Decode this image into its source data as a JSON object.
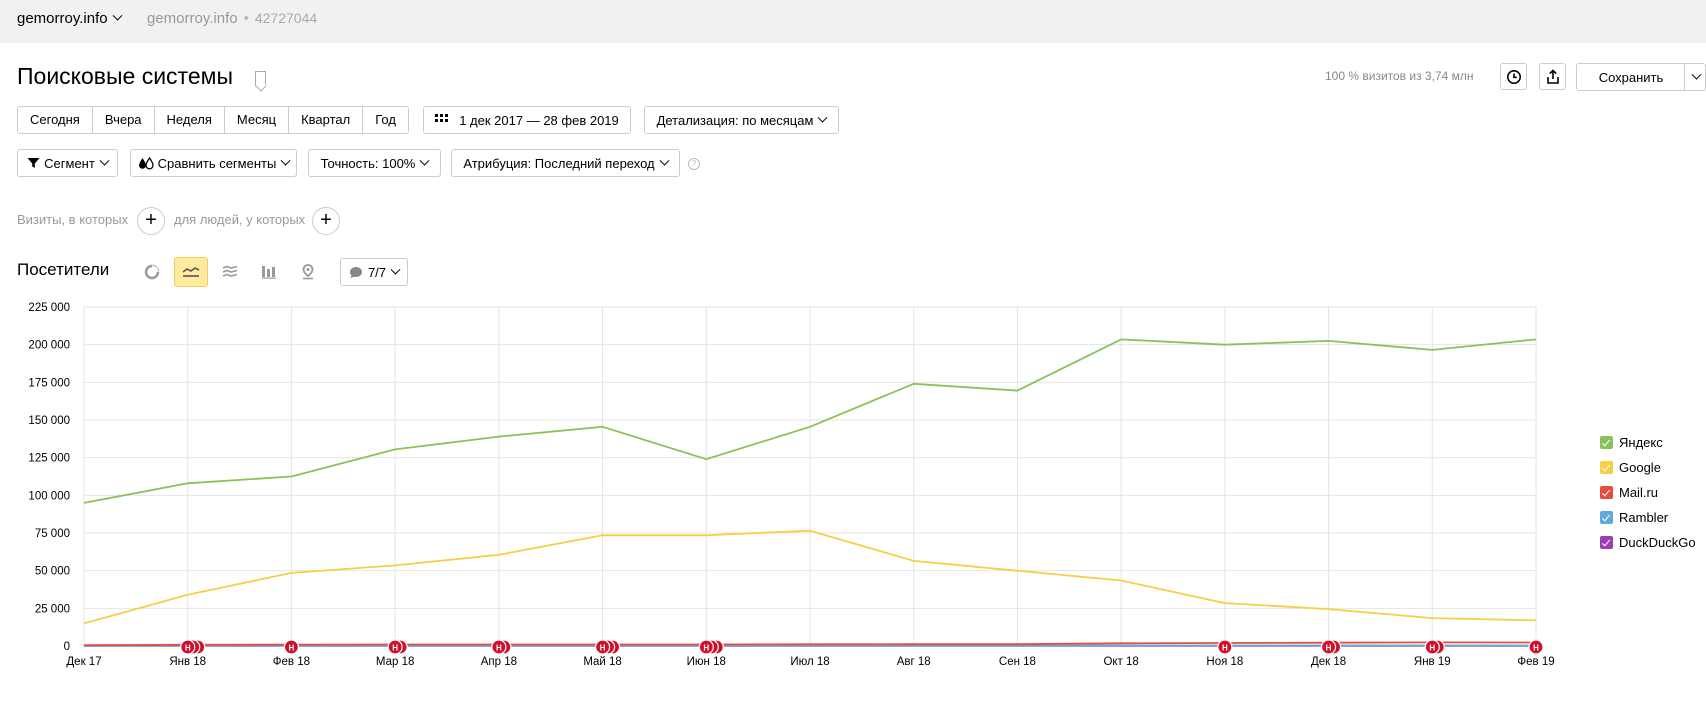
{
  "header": {
    "site_name": "gemorroy.info",
    "site_name_secondary": "gemorroy.info",
    "separator": "•",
    "counter_id": "42727044"
  },
  "report": {
    "title": "Поисковые системы",
    "visits_info": "100 % визитов из 3,74 млн",
    "save_label": "Сохранить"
  },
  "periods": [
    "Сегодня",
    "Вчера",
    "Неделя",
    "Месяц",
    "Квартал",
    "Год"
  ],
  "date_range": "1 дек 2017 — 28 фев 2019",
  "detail_label": "Детализация: по месяцам",
  "filters": {
    "segment": "Сегмент",
    "compare": "Сравнить сегменты",
    "accuracy": "Точность: 100%",
    "attribution": "Атрибуция: Последний переход",
    "help": "?"
  },
  "conditions": {
    "visits_label": "Визиты, в которых",
    "people_label": "для людей, у которых",
    "plus": "+"
  },
  "chart_section": {
    "title": "Посетители",
    "series_counter": "7/7"
  },
  "colors": {
    "yandex": "#8bc15a",
    "google": "#f5cf47",
    "mailru": "#e74c3c",
    "rambler": "#62a8dc",
    "duckduckgo": "#9b3fb5",
    "marker": "#d0102a"
  },
  "chart_data": {
    "type": "line",
    "x": [
      "Дек 17",
      "Янв 18",
      "Фев 18",
      "Мар 18",
      "Апр 18",
      "Май 18",
      "Июн 18",
      "Июл 18",
      "Авг 18",
      "Сен 18",
      "Окт 18",
      "Ноя 18",
      "Дек 18",
      "Янв 19",
      "Фев 19"
    ],
    "ylim": [
      0,
      225000
    ],
    "yticks": [
      0,
      25000,
      50000,
      75000,
      100000,
      125000,
      150000,
      175000,
      200000,
      225000
    ],
    "ytick_labels": [
      "0",
      "25 000",
      "50 000",
      "75 000",
      "100 000",
      "125 000",
      "150 000",
      "175 000",
      "200 000",
      "225 000"
    ],
    "grid": true,
    "legend": "right",
    "series": [
      {
        "name": "Яндекс",
        "color": "#8bc15a",
        "values": [
          95000,
          108000,
          112500,
          130500,
          139000,
          145500,
          124000,
          145500,
          174000,
          169500,
          203500,
          200000,
          202500,
          196500,
          203500
        ]
      },
      {
        "name": "Google",
        "color": "#f5cf47",
        "values": [
          15000,
          34000,
          48500,
          53500,
          60500,
          73500,
          73500,
          76500,
          56500,
          50000,
          43500,
          28500,
          24500,
          18500,
          17000
        ]
      },
      {
        "name": "Mail.ru",
        "color": "#e74c3c",
        "values": [
          500,
          800,
          900,
          1000,
          1000,
          1000,
          1000,
          1100,
          1200,
          1200,
          1800,
          2000,
          2200,
          2400,
          2300
        ]
      },
      {
        "name": "Rambler",
        "color": "#62a8dc",
        "values": [
          200,
          200,
          200,
          200,
          200,
          200,
          200,
          200,
          200,
          200,
          300,
          300,
          300,
          300,
          300
        ]
      },
      {
        "name": "DuckDuckGo",
        "color": "#9b3fb5",
        "values": [
          50,
          50,
          50,
          50,
          50,
          50,
          50,
          50,
          50,
          50,
          100,
          100,
          100,
          100,
          100
        ]
      }
    ],
    "annotations": [
      {
        "x_index": 1,
        "count": 3,
        "label": "Н"
      },
      {
        "x_index": 2,
        "count": 1,
        "label": "Н"
      },
      {
        "x_index": 3,
        "count": 2,
        "label": "Н"
      },
      {
        "x_index": 4,
        "count": 2,
        "label": "Н"
      },
      {
        "x_index": 5,
        "count": 3,
        "label": "Н"
      },
      {
        "x_index": 6,
        "count": 3,
        "label": "Н"
      },
      {
        "x_index": 11,
        "count": 1,
        "label": "Н"
      },
      {
        "x_index": 12,
        "count": 2,
        "label": "Н"
      },
      {
        "x_index": 13,
        "count": 2,
        "label": "Н"
      },
      {
        "x_index": 14,
        "count": 1,
        "label": "Н"
      }
    ]
  }
}
